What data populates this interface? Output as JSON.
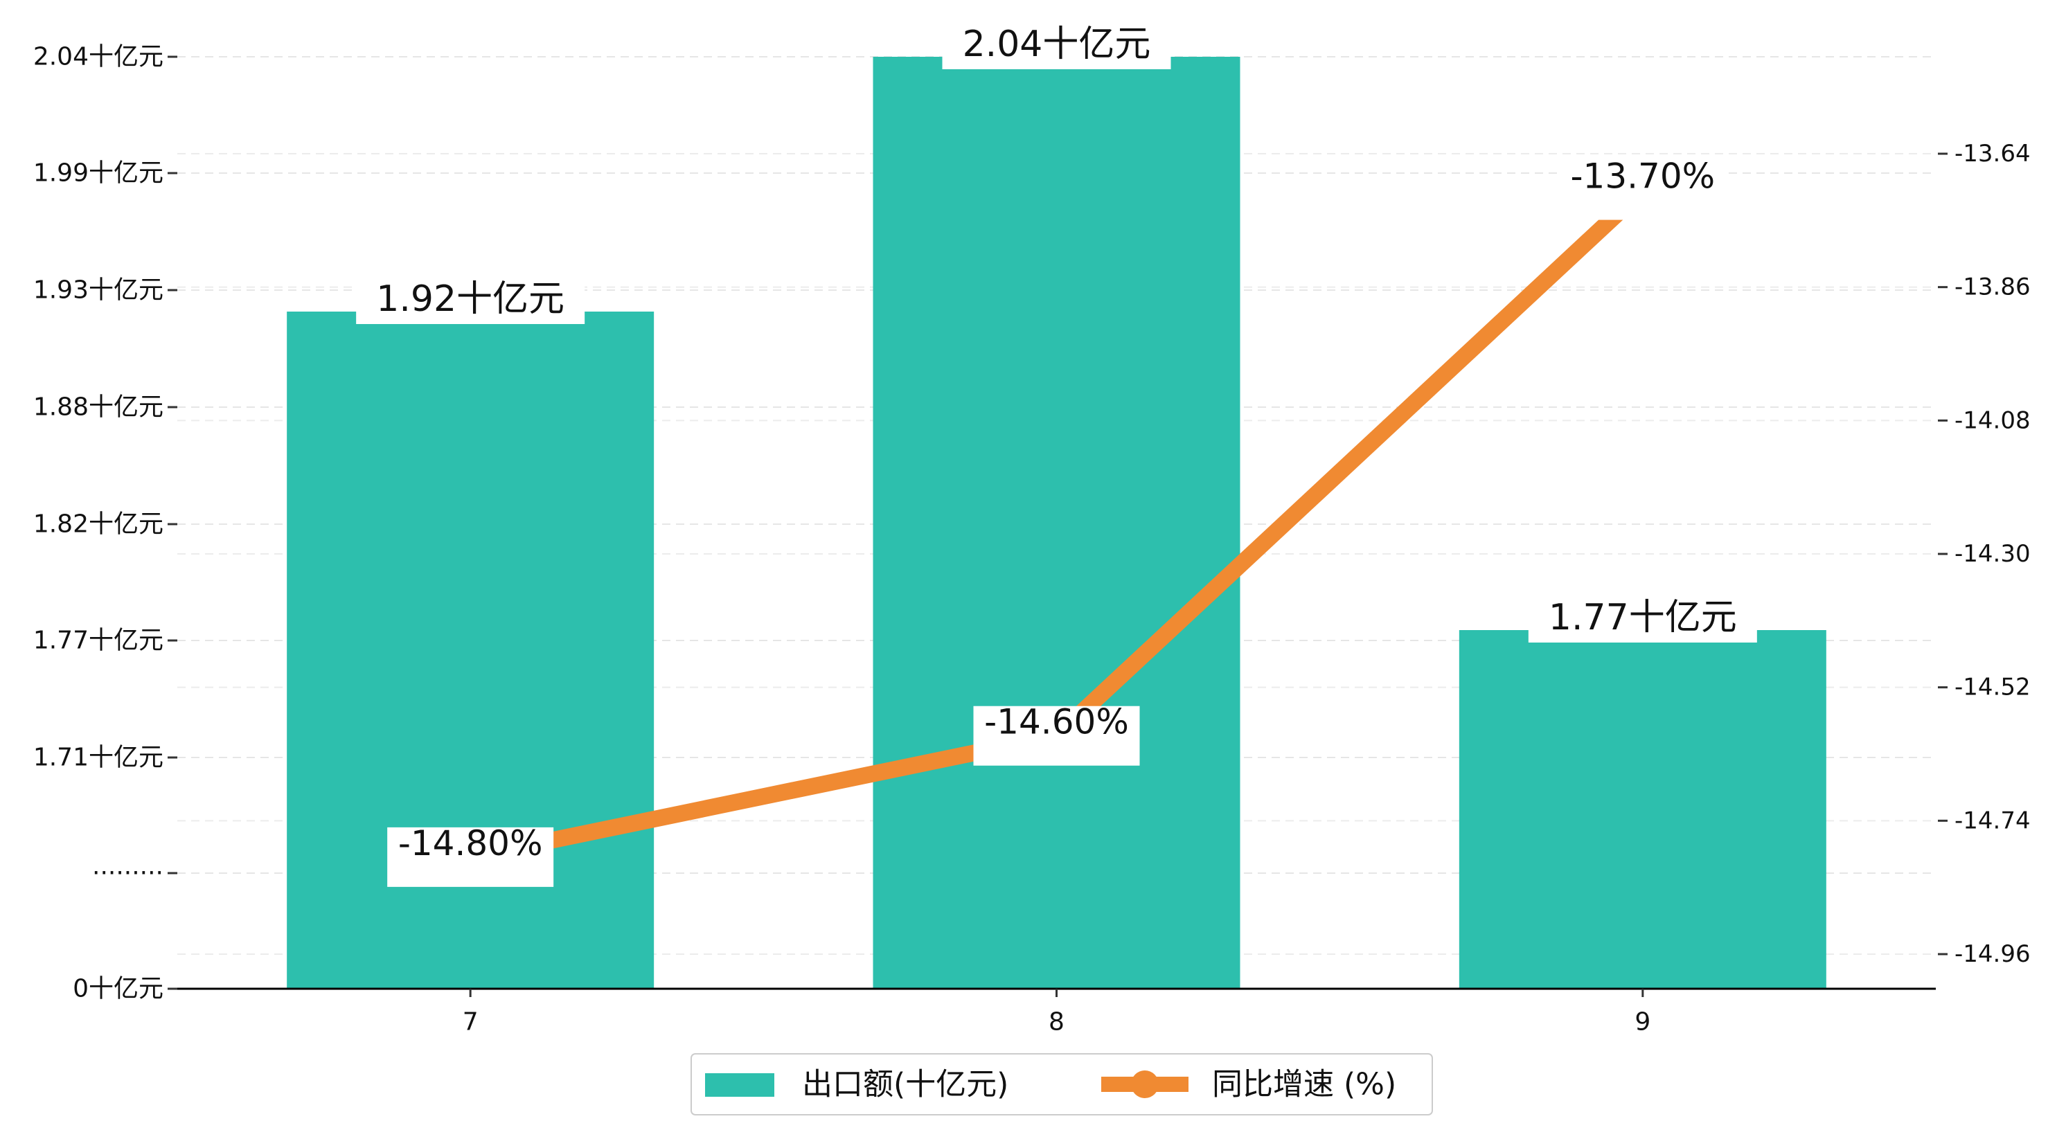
{
  "chart_data": {
    "type": "bar",
    "categories": [
      "7",
      "8",
      "9"
    ],
    "series": [
      {
        "name": "出口额(十亿元)",
        "type": "bar",
        "axis": "left",
        "values": [
          1.92,
          2.04,
          1.77
        ],
        "labels": [
          "1.92十亿元",
          "2.04十亿元",
          "1.77十亿元"
        ],
        "color": "#2dbfad"
      },
      {
        "name": "同比增速 (%)",
        "type": "line",
        "axis": "right",
        "values": [
          -14.8,
          -14.6,
          -13.7
        ],
        "labels": [
          "-14.80%",
          "-14.60%",
          "-13.70%"
        ],
        "color": "#f08a32"
      }
    ],
    "y_left": {
      "tick_labels": [
        "0十亿元",
        "·········",
        "1.71十亿元",
        "1.77十亿元",
        "1.82十亿元",
        "1.88十亿元",
        "1.93十亿元",
        "1.99十亿元",
        "2.04十亿元"
      ],
      "broken_axis": true
    },
    "y_right": {
      "ticks": [
        -14.96,
        -14.74,
        -14.52,
        -14.3,
        -14.08,
        -13.86,
        -13.64
      ],
      "tick_labels": [
        "-14.96",
        "-14.74",
        "-14.52",
        "-14.30",
        "-14.08",
        "-13.86",
        "-13.64"
      ]
    },
    "grid": "horizontal dashed",
    "legend_position": "bottom-center"
  }
}
